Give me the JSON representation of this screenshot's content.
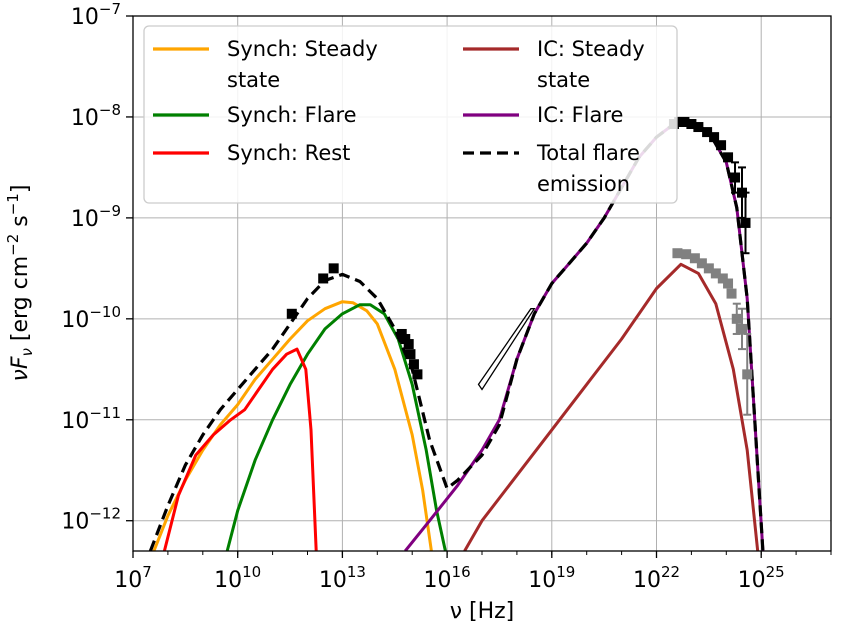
{
  "chart_data": {
    "type": "line",
    "xlabel": "ν [Hz]",
    "ylabel": "νF_ν [erg cm⁻² s⁻¹]",
    "x_scale": "log",
    "y_scale": "log",
    "xlim_log10": [
      7,
      27
    ],
    "ylim_log10": [
      -12.3,
      -7
    ],
    "grid": true,
    "legend_position": "top",
    "x_ticks": [
      {
        "base": "10",
        "exp": "7",
        "value": 7
      },
      {
        "base": "10",
        "exp": "10",
        "value": 10
      },
      {
        "base": "10",
        "exp": "13",
        "value": 13
      },
      {
        "base": "10",
        "exp": "16",
        "value": 16
      },
      {
        "base": "10",
        "exp": "19",
        "value": 19
      },
      {
        "base": "10",
        "exp": "22",
        "value": 22
      },
      {
        "base": "10",
        "exp": "25",
        "value": 25
      }
    ],
    "y_ticks": [
      {
        "base": "10",
        "exp": "−7",
        "value": -7
      },
      {
        "base": "10",
        "exp": "−8",
        "value": -8
      },
      {
        "base": "10",
        "exp": "−9",
        "value": -9
      },
      {
        "base": "10",
        "exp": "−10",
        "value": -10
      },
      {
        "base": "10",
        "exp": "−11",
        "value": -11
      },
      {
        "base": "10",
        "exp": "−12",
        "value": -12
      }
    ],
    "series": [
      {
        "name": "Synch: Steady state",
        "color": "#ffa500",
        "dash": "solid",
        "points_log10": [
          [
            7.6,
            -12.3
          ],
          [
            8,
            -11.95
          ],
          [
            8.5,
            -11.6
          ],
          [
            9,
            -11.3
          ],
          [
            9.5,
            -11.05
          ],
          [
            10,
            -10.85
          ],
          [
            10.5,
            -10.6
          ],
          [
            11,
            -10.4
          ],
          [
            11.5,
            -10.2
          ],
          [
            12,
            -10.02
          ],
          [
            12.5,
            -9.9
          ],
          [
            13,
            -9.83
          ],
          [
            13.3,
            -9.84
          ],
          [
            13.7,
            -9.92
          ],
          [
            14,
            -10.05
          ],
          [
            14.5,
            -10.5
          ],
          [
            15,
            -11.15
          ],
          [
            15.3,
            -11.7
          ],
          [
            15.55,
            -12.3
          ]
        ]
      },
      {
        "name": "Synch: Flare",
        "color": "#008000",
        "dash": "solid",
        "points_log10": [
          [
            9.7,
            -12.3
          ],
          [
            10,
            -11.9
          ],
          [
            10.5,
            -11.4
          ],
          [
            11,
            -11
          ],
          [
            11.5,
            -10.65
          ],
          [
            12,
            -10.35
          ],
          [
            12.5,
            -10.1
          ],
          [
            13,
            -9.95
          ],
          [
            13.5,
            -9.86
          ],
          [
            13.8,
            -9.86
          ],
          [
            14.2,
            -9.95
          ],
          [
            14.6,
            -10.2
          ],
          [
            15,
            -10.65
          ],
          [
            15.4,
            -11.3
          ],
          [
            15.7,
            -11.9
          ],
          [
            15.95,
            -12.3
          ]
        ]
      },
      {
        "name": "Synch: Rest",
        "color": "#ff0000",
        "dash": "solid",
        "points_log10": [
          [
            7.9,
            -12.3
          ],
          [
            8.3,
            -11.75
          ],
          [
            8.8,
            -11.35
          ],
          [
            9.3,
            -11.15
          ],
          [
            9.8,
            -11.0
          ],
          [
            10.2,
            -10.9
          ],
          [
            10.6,
            -10.7
          ],
          [
            11,
            -10.5
          ],
          [
            11.4,
            -10.35
          ],
          [
            11.7,
            -10.3
          ],
          [
            11.95,
            -10.5
          ],
          [
            12.1,
            -11.1
          ],
          [
            12.25,
            -12.3
          ]
        ]
      },
      {
        "name": "IC: Steady state",
        "color": "#a52a2a",
        "dash": "solid",
        "points_log10": [
          [
            16.5,
            -12.3
          ],
          [
            17,
            -12.0
          ],
          [
            18,
            -11.55
          ],
          [
            19,
            -11.1
          ],
          [
            20,
            -10.65
          ],
          [
            21,
            -10.2
          ],
          [
            22,
            -9.7
          ],
          [
            22.7,
            -9.46
          ],
          [
            23.2,
            -9.55
          ],
          [
            23.7,
            -9.85
          ],
          [
            24.2,
            -10.5
          ],
          [
            24.6,
            -11.3
          ],
          [
            24.9,
            -12.3
          ]
        ]
      },
      {
        "name": "IC: Flare",
        "color": "#800080",
        "dash": "solid",
        "points_log10": [
          [
            14.8,
            -12.3
          ],
          [
            15.5,
            -12.0
          ],
          [
            16.3,
            -11.65
          ],
          [
            17,
            -11.3
          ],
          [
            17.5,
            -11.0
          ],
          [
            18,
            -10.4
          ],
          [
            18.5,
            -9.95
          ],
          [
            19,
            -9.65
          ],
          [
            19.5,
            -9.45
          ],
          [
            20,
            -9.25
          ],
          [
            20.5,
            -9.0
          ],
          [
            21,
            -8.7
          ],
          [
            21.5,
            -8.4
          ],
          [
            22,
            -8.2
          ],
          [
            22.5,
            -8.07
          ],
          [
            23,
            -8.05
          ],
          [
            23.5,
            -8.15
          ],
          [
            24,
            -8.45
          ],
          [
            24.3,
            -8.9
          ],
          [
            24.6,
            -9.8
          ],
          [
            24.85,
            -11.2
          ],
          [
            25.05,
            -12.3
          ]
        ]
      },
      {
        "name": "Total flare emission",
        "color": "#000000",
        "dash": "dashed",
        "points_log10": [
          [
            7.5,
            -12.3
          ],
          [
            8,
            -11.85
          ],
          [
            8.5,
            -11.45
          ],
          [
            9,
            -11.15
          ],
          [
            9.5,
            -10.9
          ],
          [
            10,
            -10.7
          ],
          [
            10.5,
            -10.5
          ],
          [
            11,
            -10.3
          ],
          [
            11.5,
            -10.05
          ],
          [
            12,
            -9.8
          ],
          [
            12.5,
            -9.62
          ],
          [
            13,
            -9.56
          ],
          [
            13.5,
            -9.63
          ],
          [
            14,
            -9.8
          ],
          [
            14.5,
            -10.1
          ],
          [
            15,
            -10.5
          ],
          [
            15.5,
            -11.2
          ],
          [
            16,
            -11.68
          ],
          [
            16.3,
            -11.6
          ],
          [
            17,
            -11.35
          ],
          [
            17.5,
            -11.05
          ],
          [
            18,
            -10.4
          ],
          [
            18.5,
            -9.95
          ],
          [
            19,
            -9.65
          ],
          [
            19.5,
            -9.45
          ],
          [
            20,
            -9.25
          ],
          [
            20.5,
            -9.0
          ],
          [
            21,
            -8.7
          ],
          [
            21.5,
            -8.4
          ],
          [
            22,
            -8.2
          ],
          [
            22.5,
            -8.07
          ],
          [
            23,
            -8.05
          ],
          [
            23.5,
            -8.15
          ],
          [
            24,
            -8.45
          ],
          [
            24.3,
            -8.9
          ],
          [
            24.6,
            -9.8
          ],
          [
            24.85,
            -11.2
          ],
          [
            25.05,
            -12.3
          ]
        ]
      }
    ],
    "data_points_black": [
      {
        "x": 11.55,
        "y": -9.95
      },
      {
        "x": 12.45,
        "y": -9.6
      },
      {
        "x": 12.75,
        "y": -9.5
      },
      {
        "x": 14.7,
        "y": -10.15
      },
      {
        "x": 14.8,
        "y": -10.2
      },
      {
        "x": 14.9,
        "y": -10.25
      },
      {
        "x": 14.95,
        "y": -10.35
      },
      {
        "x": 15.05,
        "y": -10.45
      },
      {
        "x": 15.15,
        "y": -10.55
      },
      {
        "x": 22.5,
        "y": -8.07
      },
      {
        "x": 22.65,
        "y": -8.05
      },
      {
        "x": 22.8,
        "y": -8.05
      },
      {
        "x": 23.0,
        "y": -8.07
      },
      {
        "x": 23.2,
        "y": -8.1
      },
      {
        "x": 23.45,
        "y": -8.15
      },
      {
        "x": 23.65,
        "y": -8.2
      },
      {
        "x": 23.85,
        "y": -8.28
      },
      {
        "x": 24.05,
        "y": -8.4
      },
      {
        "x": 24.25,
        "y": -8.6,
        "err": 0.15
      },
      {
        "x": 24.45,
        "y": -8.75,
        "err": 0.25
      },
      {
        "x": 24.55,
        "y": -9.05,
        "err": 0.3
      }
    ],
    "data_points_gray": [
      {
        "x": 22.6,
        "y": -9.35
      },
      {
        "x": 22.85,
        "y": -9.36
      },
      {
        "x": 23.1,
        "y": -9.4
      },
      {
        "x": 23.3,
        "y": -9.45
      },
      {
        "x": 23.5,
        "y": -9.5
      },
      {
        "x": 23.7,
        "y": -9.55
      },
      {
        "x": 23.9,
        "y": -9.6
      },
      {
        "x": 24.05,
        "y": -9.65
      },
      {
        "x": 24.15,
        "y": -9.75
      },
      {
        "x": 24.3,
        "y": -10.0,
        "err": 0.15
      },
      {
        "x": 24.45,
        "y": -10.1,
        "err": 0.2
      },
      {
        "x": 24.6,
        "y": -10.55,
        "err": 0.4
      }
    ],
    "bowtie_log10": [
      [
        16.9,
        -10.65
      ],
      [
        18.4,
        -9.9
      ],
      [
        18.5,
        -9.9
      ],
      [
        17.0,
        -10.7
      ]
    ],
    "legend": {
      "left_column": [
        {
          "text1": "Synch: Steady",
          "text2": "state",
          "color": "#ffa500",
          "dash": "solid"
        },
        {
          "text1": "Synch: Flare",
          "text2": "",
          "color": "#008000",
          "dash": "solid"
        },
        {
          "text1": "Synch: Rest",
          "text2": "",
          "color": "#ff0000",
          "dash": "solid"
        }
      ],
      "right_column": [
        {
          "text1": "IC: Steady",
          "text2": "state",
          "color": "#a52a2a",
          "dash": "solid"
        },
        {
          "text1": "IC: Flare",
          "text2": "",
          "color": "#800080",
          "dash": "solid"
        },
        {
          "text1": "Total flare",
          "text2": "emission",
          "color": "#000000",
          "dash": "dashed"
        }
      ]
    }
  }
}
